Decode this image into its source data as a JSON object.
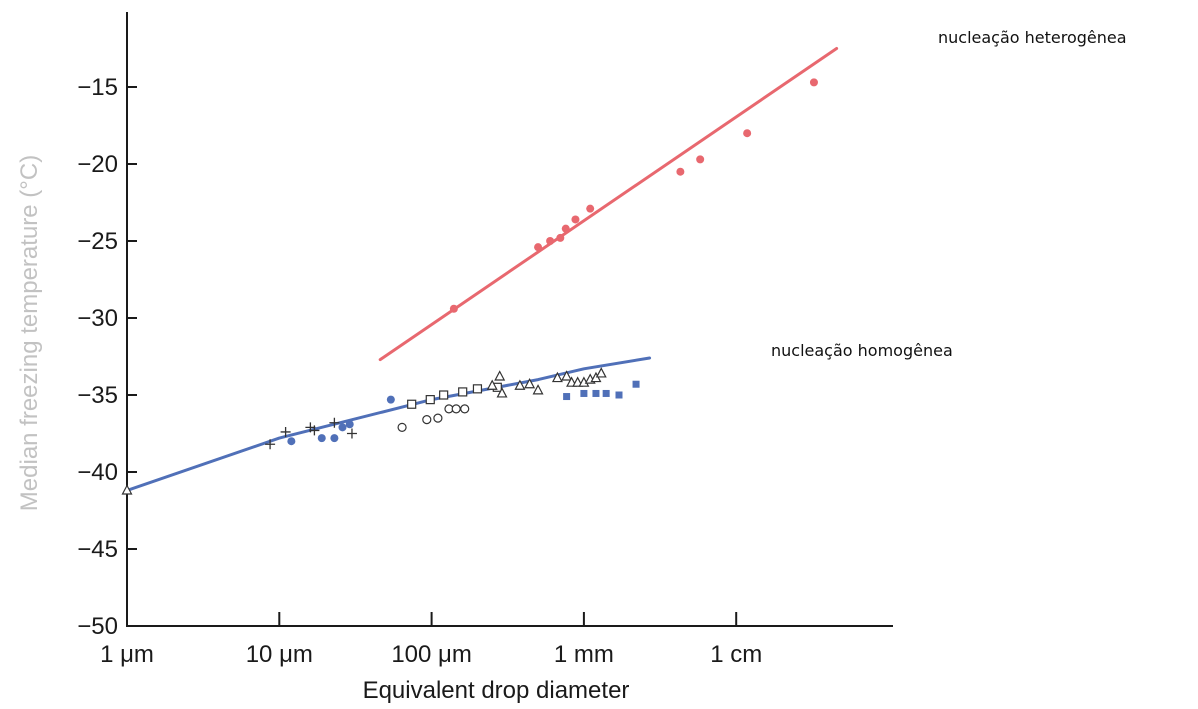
{
  "chart_data": {
    "type": "scatter",
    "title": "",
    "xlabel": "Equivalent drop diameter",
    "ylabel": "Median freezing temperature (°C)",
    "x_scale": "log",
    "x_unit": "m",
    "xlim": [
      1e-06,
      0.2
    ],
    "ylim": [
      -50,
      -10
    ],
    "grid": false,
    "x_ticks": [
      {
        "value": 1e-06,
        "label": "1 μm"
      },
      {
        "value": 1e-05,
        "label": "10 μm"
      },
      {
        "value": 0.0001,
        "label": "100 μm"
      },
      {
        "value": 0.001,
        "label": "1 mm"
      },
      {
        "value": 0.01,
        "label": "1 cm"
      }
    ],
    "y_ticks": [
      {
        "value": -15,
        "label": "−15"
      },
      {
        "value": -20,
        "label": "−20"
      },
      {
        "value": -25,
        "label": "−25"
      },
      {
        "value": -30,
        "label": "−30"
      },
      {
        "value": -35,
        "label": "−35"
      },
      {
        "value": -40,
        "label": "−40"
      },
      {
        "value": -45,
        "label": "−45"
      },
      {
        "value": -50,
        "label": "−50"
      }
    ],
    "colors": {
      "heterogeneous": "#e8686f",
      "homogeneous": "#5070b8",
      "axis": "#1a1a1a",
      "ylabel": "#c2c2c2"
    },
    "annotations": [
      {
        "text": "nucleação heterogênea",
        "series": "heterogeneous"
      },
      {
        "text": "nucleação homogênea",
        "series": "homogeneous"
      }
    ],
    "fit_lines": [
      {
        "series": "heterogeneous",
        "points": [
          [
            4.6e-05,
            -32.7
          ],
          [
            0.0456,
            -12.5
          ]
        ]
      },
      {
        "series": "homogeneous",
        "points": [
          [
            1e-06,
            -41.2
          ],
          [
            1e-05,
            -37.8
          ],
          [
            0.0001,
            -35.3
          ],
          [
            0.0005,
            -34.0
          ],
          [
            0.001,
            -33.3
          ],
          [
            0.0027,
            -32.6
          ]
        ]
      }
    ],
    "series": [
      {
        "series": "heterogeneous",
        "marker": "filled-circle",
        "x": [
          0.00014,
          0.0005,
          0.0006,
          0.0007,
          0.00076,
          0.00088,
          0.0011,
          0.0043,
          0.0058,
          0.0118,
          0.0324
        ],
        "y": [
          -29.4,
          -25.4,
          -25.0,
          -24.8,
          -24.2,
          -23.6,
          -22.9,
          -20.5,
          -19.7,
          -18.0,
          -14.7
        ]
      },
      {
        "series": "homogeneous",
        "marker": "plus",
        "x": [
          8.7e-06,
          1.1e-05,
          1.6e-05,
          1.7e-05,
          2.3e-05,
          3e-05
        ],
        "y": [
          -38.2,
          -37.4,
          -37.1,
          -37.3,
          -36.8,
          -37.5
        ]
      },
      {
        "series": "homogeneous",
        "marker": "filled-circle",
        "x": [
          1.2e-05,
          1.9e-05,
          2.3e-05,
          2.6e-05,
          2.9e-05,
          5.4e-05
        ],
        "y": [
          -38.0,
          -37.8,
          -37.8,
          -37.1,
          -36.9,
          -35.3
        ]
      },
      {
        "series": "homogeneous",
        "marker": "open-circle",
        "x": [
          6.4e-05,
          9.3e-05,
          0.00011,
          0.00013,
          0.000145,
          0.000165
        ],
        "y": [
          -37.1,
          -36.6,
          -36.5,
          -35.9,
          -35.9,
          -35.9
        ]
      },
      {
        "series": "homogeneous",
        "marker": "open-square",
        "x": [
          7.4e-05,
          9.8e-05,
          0.00012,
          0.00016,
          0.0002,
          0.00027
        ],
        "y": [
          -35.6,
          -35.3,
          -35.0,
          -34.8,
          -34.6,
          -34.5
        ]
      },
      {
        "series": "homogeneous",
        "marker": "open-triangle",
        "x": [
          1e-06,
          0.00025,
          0.00028,
          0.00029,
          0.00038,
          0.00044,
          0.0005,
          0.00067,
          0.00077,
          0.00083,
          0.00091,
          0.001,
          0.0011,
          0.0012,
          0.0013
        ],
        "y": [
          -41.2,
          -34.4,
          -33.8,
          -34.9,
          -34.4,
          -34.3,
          -34.7,
          -33.9,
          -33.8,
          -34.2,
          -34.2,
          -34.2,
          -34.0,
          -33.9,
          -33.6
        ]
      },
      {
        "series": "homogeneous",
        "marker": "filled-square",
        "x": [
          0.00077,
          0.001,
          0.0012,
          0.0014,
          0.0017,
          0.0022
        ],
        "y": [
          -35.1,
          -34.9,
          -34.9,
          -34.9,
          -35.0,
          -34.3
        ]
      }
    ]
  }
}
